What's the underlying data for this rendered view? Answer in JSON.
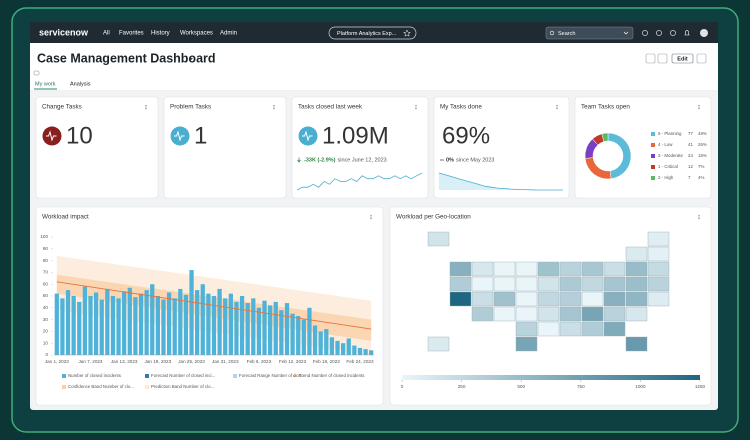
{
  "nav": {
    "brand": "servicenow",
    "items": [
      "All",
      "Favorites",
      "History",
      "Workspaces",
      "Admin"
    ],
    "workspace": "Platform Analytics Exp...",
    "search": "Search"
  },
  "header": {
    "title": "Case Management Dashboard",
    "edit": "Edit"
  },
  "tabs": [
    "My work",
    "Analysis"
  ],
  "cards": [
    {
      "title": "Change Tasks",
      "value": "10",
      "icon_color": "#8b1e1e"
    },
    {
      "title": "Problem Tasks",
      "value": "1",
      "icon_color": "#4aaed0"
    },
    {
      "title": "Tasks closed last week",
      "value": "1.09M",
      "icon_color": "#4aaed0",
      "change": "-33K (-2.9%)",
      "since": "since June 12, 2023",
      "trend": [
        2,
        3,
        3,
        4,
        3,
        5,
        4,
        6,
        5,
        5,
        6,
        5,
        7,
        6,
        6,
        7,
        6,
        6,
        7,
        6,
        7,
        6,
        7,
        8
      ],
      "color": "#4aaed0"
    },
    {
      "title": "My Tasks done",
      "value": "69%",
      "change": "0%",
      "since": "since May 2023",
      "trend": [
        10,
        9,
        8,
        7,
        6,
        5,
        4,
        3,
        2.5,
        2,
        1.8,
        1.5,
        1.3,
        1.2,
        1.1,
        1,
        1,
        1,
        1,
        1
      ],
      "color": "#4aaed0"
    },
    {
      "title": "Team Tasks open",
      "labels": [
        "5 - Planning",
        "4 - Low",
        "3 - Moderate",
        "1 - Critical",
        "2 - High"
      ],
      "values": [
        77,
        41,
        24,
        12,
        7
      ],
      "shares": [
        "48%",
        "26%",
        "15%",
        "7%",
        "4%"
      ],
      "colors": [
        "#5bbbd8",
        "#e8663a",
        "#7b3fc4",
        "#c0392b",
        "#5cb85c"
      ]
    }
  ],
  "chart_data": [
    {
      "type": "bar",
      "title": "Workload impact",
      "categories": [
        "Jan 1, 2023",
        null,
        null,
        null,
        null,
        null,
        "Jan 7, 2023",
        null,
        null,
        null,
        null,
        null,
        "Jan 13, 2023",
        null,
        null,
        null,
        null,
        null,
        "Jan 19, 2023",
        null,
        null,
        null,
        null,
        null,
        "Jan 25, 2023",
        null,
        null,
        null,
        null,
        null,
        "Jan 31, 2023",
        null,
        null,
        null,
        null,
        null,
        "Feb 6, 2023",
        null,
        null,
        null,
        null,
        null,
        "Feb 12, 2023",
        null,
        null,
        null,
        null,
        null,
        "Feb 18, 2023",
        null,
        null,
        null,
        null,
        null,
        "Feb 24, 2023",
        null,
        null
      ],
      "series": [
        {
          "name": "Number of closed incidents",
          "color": "#4fb3d9",
          "values": [
            52,
            48,
            55,
            50,
            45,
            58,
            50,
            53,
            47,
            56,
            50,
            48,
            54,
            57,
            49,
            52,
            55,
            60,
            50,
            47,
            53,
            48,
            56,
            51,
            72,
            55,
            60,
            52,
            50,
            56,
            48,
            52,
            45,
            50,
            44,
            48,
            40,
            46,
            42,
            45,
            38,
            44,
            35,
            33,
            30,
            40,
            25,
            20,
            22,
            15,
            12,
            10,
            14,
            8,
            6,
            5,
            4
          ]
        }
      ],
      "forecast": {
        "name": "Forecast Number of closed inci...",
        "color": "#2d7fa6"
      },
      "forecast_range": {
        "name": "Forecast Range Number of clos...",
        "color": "#a9d8ea"
      },
      "trend": {
        "name": "Trend Number of closed incidents",
        "color": "#e8733d",
        "values": [
          62,
          22
        ]
      },
      "confidence_band": {
        "name": "Confidence Band Number of clo...",
        "color": "#f9cfa8",
        "lower": [
          52,
          12
        ],
        "upper": [
          68,
          30
        ]
      },
      "prediction_band": {
        "name": "Prediction Band Number of clo...",
        "color": "#fde9d6",
        "lower": [
          38,
          0
        ],
        "upper": [
          84,
          46
        ]
      },
      "ylim": [
        0,
        100
      ],
      "yticks": [
        0,
        10,
        20,
        30,
        40,
        50,
        60,
        70,
        80,
        90,
        100
      ]
    },
    {
      "type": "choropleth",
      "title": "Workload per Geo-location",
      "grid": [
        [
          150,
          null,
          null,
          null,
          null,
          null,
          null,
          null,
          null,
          null,
          60
        ],
        [
          null,
          null,
          null,
          null,
          null,
          null,
          null,
          null,
          null,
          90,
          40
        ],
        [
          null,
          600,
          120,
          0,
          0,
          450,
          300,
          400,
          200,
          500,
          230
        ],
        [
          null,
          350,
          0,
          0,
          0,
          150,
          380,
          250,
          420,
          480,
          300
        ],
        [
          null,
          1250,
          200,
          450,
          0,
          250,
          330,
          0,
          600,
          550,
          80
        ],
        [
          null,
          null,
          350,
          0,
          0,
          150,
          420,
          700,
          300,
          120,
          null
        ],
        [
          null,
          null,
          null,
          null,
          300,
          0,
          200,
          350,
          650,
          null,
          null
        ],
        [
          90,
          null,
          null,
          null,
          700,
          null,
          null,
          null,
          null,
          800,
          null
        ]
      ],
      "colorscale": [
        "#e9f5f9",
        "#1f6680"
      ],
      "zlim": [
        0,
        1250
      ],
      "zticks": [
        0,
        250,
        500,
        750,
        1000,
        1250
      ]
    }
  ]
}
